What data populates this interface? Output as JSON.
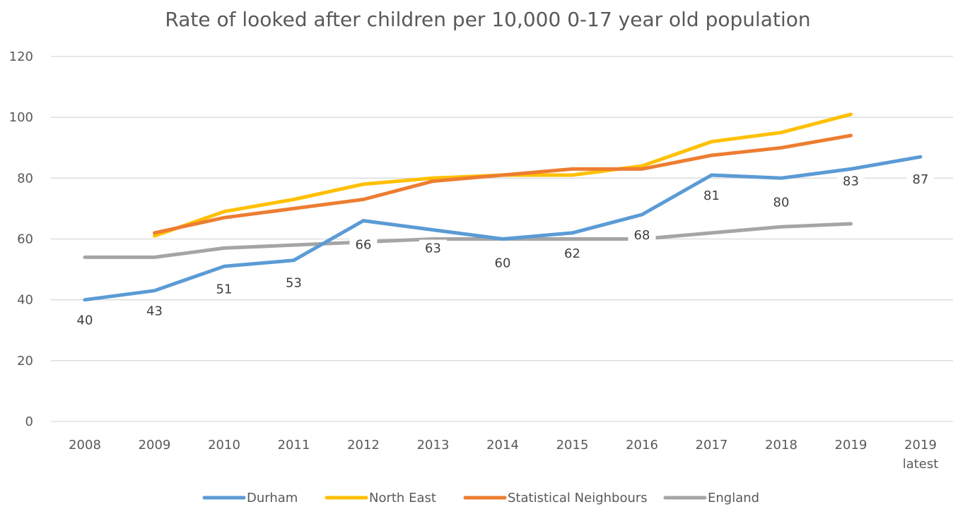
{
  "chart_data": {
    "type": "line",
    "title": "Rate of looked after children per 10,000 0-17 year old population",
    "categories": [
      "2008",
      "2009",
      "2010",
      "2011",
      "2012",
      "2013",
      "2014",
      "2015",
      "2016",
      "2017",
      "2018",
      "2019",
      "2019 latest"
    ],
    "yticks": [
      0,
      20,
      40,
      60,
      80,
      100,
      120
    ],
    "ylim": [
      0,
      120
    ],
    "grid": true,
    "legend_position": "bottom",
    "series": [
      {
        "name": "Durham",
        "color": "#5B9BD5",
        "values": [
          40,
          43,
          51,
          53,
          66,
          63,
          60,
          62,
          68,
          81,
          80,
          83,
          87
        ],
        "data_labels": [
          "40",
          "43",
          "51",
          "53",
          "66",
          "63",
          "60",
          "62",
          "68",
          "81",
          "80",
          "83",
          "87"
        ]
      },
      {
        "name": "North East",
        "color": "#FFC000",
        "values": [
          null,
          61,
          69,
          73,
          78,
          80,
          81,
          81,
          84,
          92,
          95,
          101,
          null
        ]
      },
      {
        "name": "Statistical Neighbours",
        "color": "#ED7D31",
        "values": [
          null,
          62,
          67,
          70,
          73,
          79,
          81,
          83,
          83,
          87.5,
          90,
          94,
          null
        ]
      },
      {
        "name": "England",
        "color": "#A5A5A5",
        "values": [
          54,
          54,
          57,
          58,
          59,
          60,
          60,
          60,
          60,
          62,
          64,
          65,
          null
        ]
      }
    ]
  }
}
